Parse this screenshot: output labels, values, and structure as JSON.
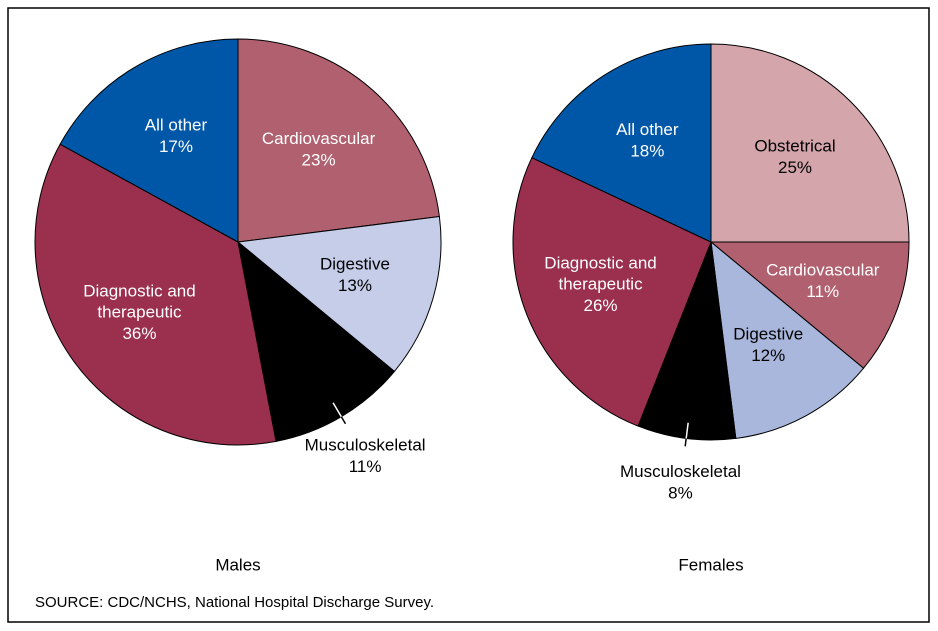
{
  "chart_data": [
    {
      "type": "pie",
      "title": "Males",
      "categories": [
        "Cardiovascular",
        "Digestive",
        "Musculoskeletal",
        "Diagnostic and therapeutic",
        "All other"
      ],
      "values": [
        23,
        13,
        11,
        36,
        17
      ],
      "value_labels": [
        "23%",
        "13%",
        "11%",
        "36%",
        "17%"
      ],
      "colors": [
        "#b0606e",
        "#c5cde8",
        "#000000",
        "#9a2f4e",
        "#0057a8"
      ]
    },
    {
      "type": "pie",
      "title": "Females",
      "categories": [
        "Obstetrical",
        "Cardiovascular",
        "Digestive",
        "Musculoskeletal",
        "Diagnostic and therapeutic",
        "All other"
      ],
      "values": [
        25,
        11,
        12,
        8,
        26,
        18
      ],
      "value_labels": [
        "25%",
        "11%",
        "12%",
        "8%",
        "26%",
        "18%"
      ],
      "colors": [
        "#d4a5ab",
        "#b0606e",
        "#a9b7dc",
        "#000000",
        "#9a2f4e",
        "#0057a8"
      ]
    }
  ],
  "source": "SOURCE: CDC/NCHS, National Hospital Discharge Survey."
}
